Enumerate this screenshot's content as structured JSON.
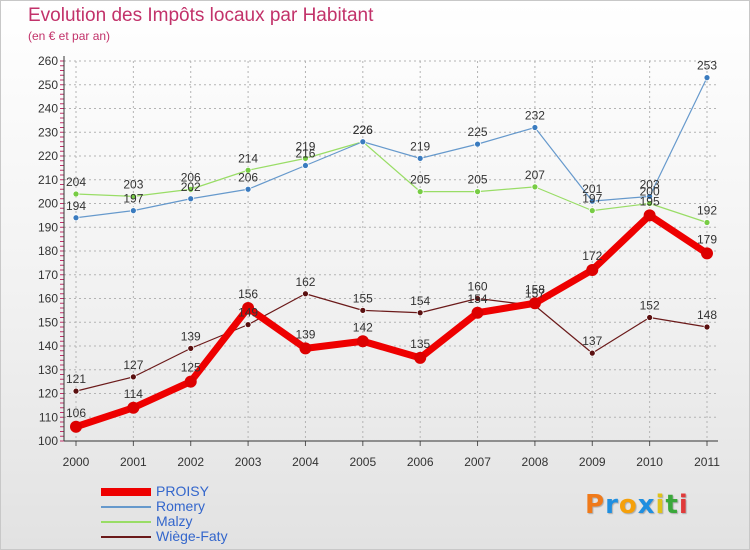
{
  "chart_data": {
    "type": "line",
    "title": "Evolution des Impôts locaux par Habitant",
    "subtitle": "(en € et par an)",
    "x": [
      "2000",
      "2001",
      "2002",
      "2003",
      "2004",
      "2005",
      "2006",
      "2007",
      "2008",
      "2009",
      "2010",
      "2011"
    ],
    "ylim": [
      100,
      260
    ],
    "yticks": [
      100,
      110,
      120,
      130,
      140,
      150,
      160,
      170,
      180,
      190,
      200,
      210,
      220,
      230,
      240,
      250,
      260
    ],
    "grid": true,
    "legend_position": "bottom-left",
    "series": [
      {
        "name": "PROISY",
        "color": "#ee0000",
        "marker_color": "#dd0000",
        "label_color": "#333333",
        "width": 7,
        "radius": 6,
        "values": [
          106,
          114,
          125,
          156,
          139,
          142,
          135,
          154,
          158,
          172,
          195,
          179
        ]
      },
      {
        "name": "Romery",
        "color": "#6699cc",
        "marker_color": "#3a7bbf",
        "label_color": "#333333",
        "width": 1.2,
        "radius": 3,
        "values": [
          194,
          197,
          202,
          206,
          216,
          226,
          219,
          225,
          232,
          201,
          203,
          253
        ]
      },
      {
        "name": "Malzy",
        "color": "#99dd66",
        "marker_color": "#77cc44",
        "label_color": "#333333",
        "width": 1.2,
        "radius": 3,
        "values": [
          204,
          203,
          206,
          214,
          219,
          226,
          205,
          205,
          207,
          197,
          200,
          192
        ]
      },
      {
        "name": "Wiège-Faty",
        "color": "#6b1a1a",
        "marker_color": "#5a1010",
        "label_color": "#333333",
        "width": 1.2,
        "radius": 3,
        "values": [
          121,
          127,
          139,
          149,
          162,
          155,
          154,
          160,
          157,
          137,
          152,
          148
        ]
      }
    ]
  },
  "logo": {
    "letters": [
      {
        "char": "P",
        "color": "#f07a1a"
      },
      {
        "char": "r",
        "color": "#1f8fe0"
      },
      {
        "char": "o",
        "color": "#f5a00a"
      },
      {
        "char": "x",
        "color": "#1f8fe0"
      },
      {
        "char": "i",
        "color": "#e0c21a"
      },
      {
        "char": "t",
        "color": "#3aa83a"
      },
      {
        "char": "i",
        "color": "#e03a3a"
      }
    ]
  }
}
